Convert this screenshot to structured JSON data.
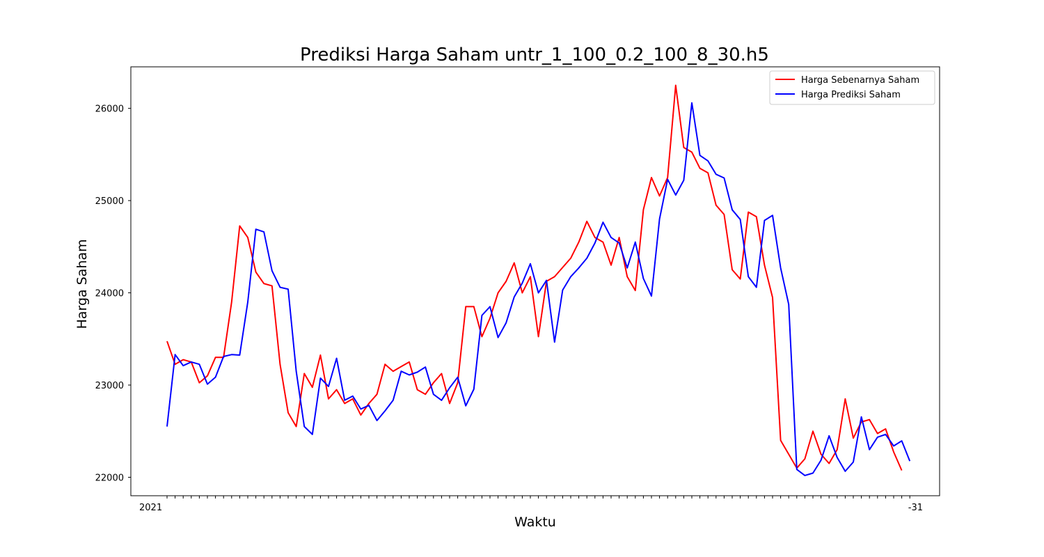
{
  "chart_data": {
    "type": "line",
    "title": "Prediksi Harga Saham untr_1_100_0.2_100_8_30.h5",
    "xlabel": "Waktu",
    "ylabel": "Harga Saham",
    "ylim": [
      21800,
      26450
    ],
    "yticks": [
      22000,
      23000,
      24000,
      25000,
      26000
    ],
    "x_tick_text_left": "2021",
    "x_tick_text_right": "-31",
    "legend_position": "top-right",
    "grid": false,
    "series": [
      {
        "name": "Harga Sebenarnya Saham",
        "color": "#ff0000",
        "values": [
          23475,
          23225,
          23275,
          23250,
          23025,
          23100,
          23300,
          23300,
          23900,
          24725,
          24600,
          24225,
          24100,
          24075,
          23225,
          22700,
          22550,
          23125,
          22975,
          23325,
          22850,
          22950,
          22800,
          22850,
          22675,
          22800,
          22900,
          23225,
          23150,
          23200,
          23250,
          22950,
          22900,
          23025,
          23125,
          22800,
          23025,
          23850,
          23850,
          23525,
          23725,
          24000,
          24125,
          24325,
          24000,
          24175,
          23525,
          24125,
          24175,
          24275,
          24375,
          24550,
          24775,
          24600,
          24550,
          24300,
          24600,
          24175,
          24025,
          24900,
          25250,
          25050,
          25250,
          26250,
          25575,
          25525,
          25350,
          25300,
          24950,
          24850,
          24250,
          24150,
          24875,
          24825,
          24300,
          23950,
          22400,
          22250,
          22100,
          22200,
          22500,
          22250,
          22150,
          22300,
          22850,
          22425,
          22600,
          22625,
          22475,
          22525,
          22275,
          22075
        ],
        "labels": []
      },
      {
        "name": "Harga Prediksi Saham",
        "color": "#0000ff",
        "values": [
          22550,
          23330,
          23210,
          23250,
          23225,
          23010,
          23085,
          23310,
          23330,
          23325,
          23900,
          24690,
          24660,
          24240,
          24060,
          24040,
          23150,
          22550,
          22465,
          23075,
          22985,
          23290,
          22835,
          22880,
          22740,
          22780,
          22615,
          22720,
          22835,
          23150,
          23110,
          23140,
          23195,
          22900,
          22835,
          22970,
          23085,
          22775,
          22955,
          23755,
          23850,
          23515,
          23675,
          23955,
          24105,
          24315,
          24000,
          24135,
          23465,
          24030,
          24175,
          24270,
          24375,
          24540,
          24765,
          24600,
          24540,
          24270,
          24550,
          24155,
          23965,
          24800,
          25230,
          25060,
          25220,
          26060,
          25490,
          25430,
          25285,
          25245,
          24900,
          24795,
          24175,
          24060,
          24785,
          24840,
          24270,
          23875,
          22085,
          22020,
          22045,
          22185,
          22450,
          22215,
          22065,
          22165,
          22655,
          22300,
          22435,
          22465,
          22340,
          22395,
          22175
        ],
        "labels": []
      }
    ]
  }
}
